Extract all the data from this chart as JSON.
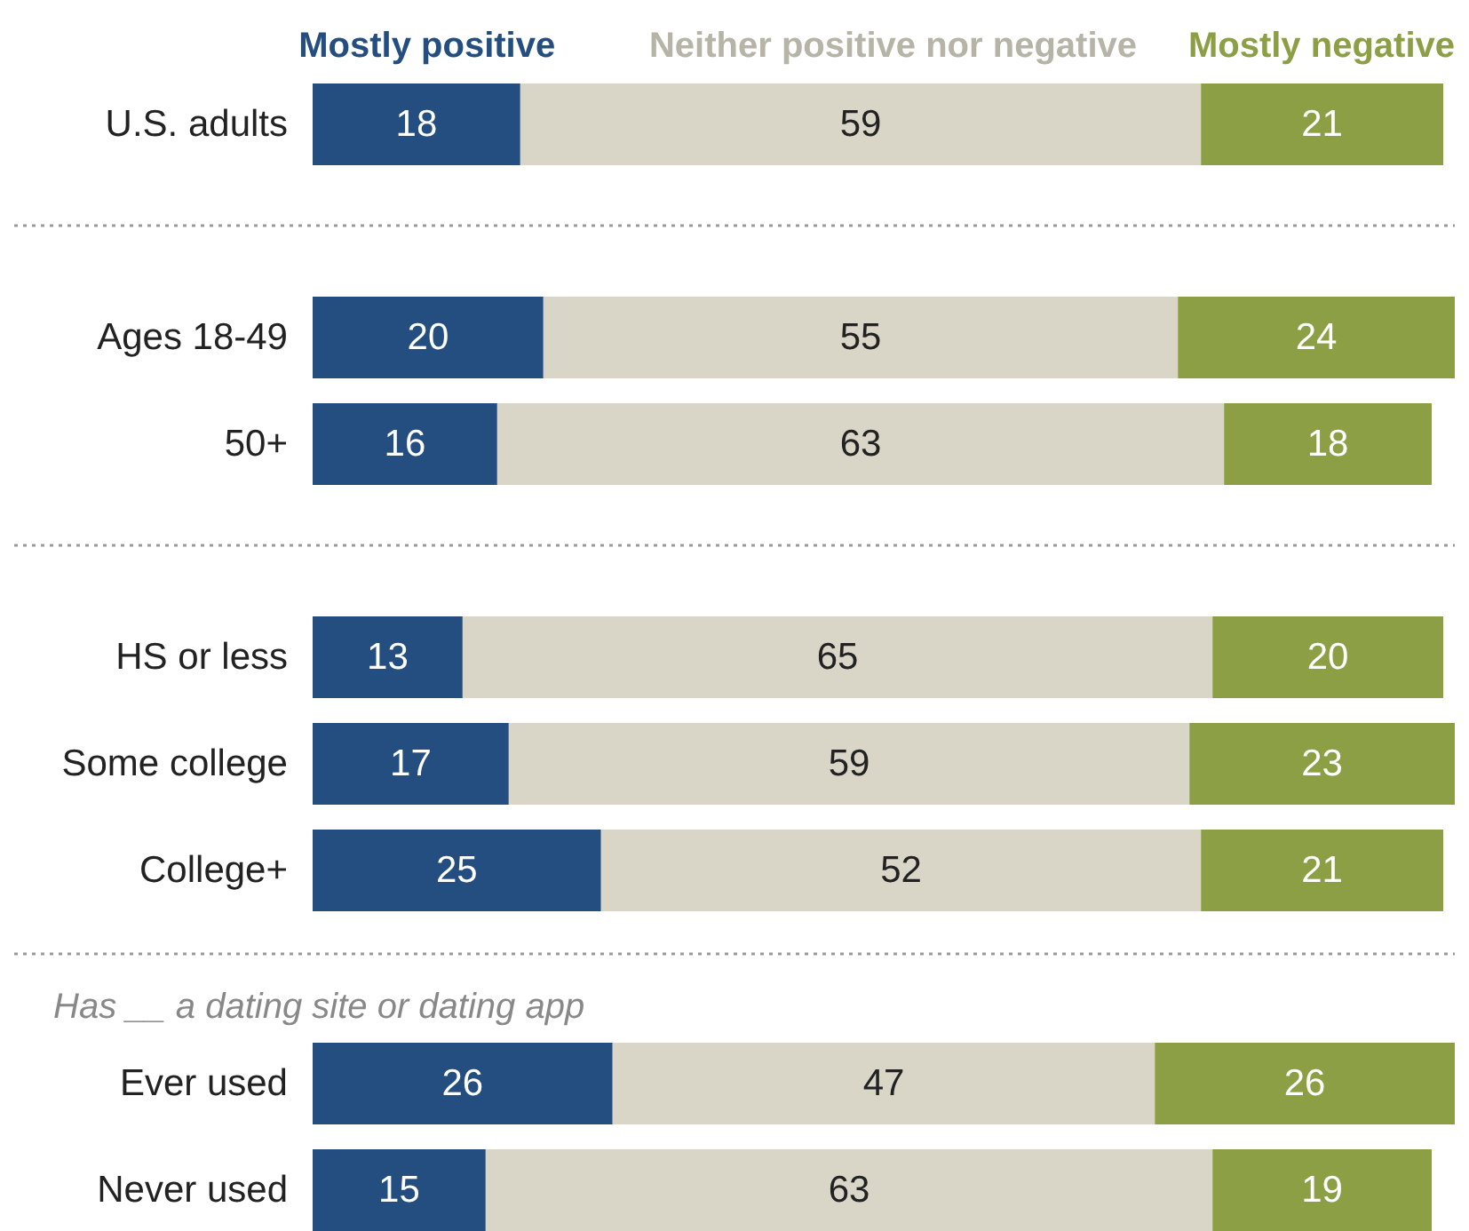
{
  "chart_data": {
    "type": "bar",
    "orientation": "horizontal",
    "stacked": true,
    "data_labels": true,
    "legend": "top",
    "categories": [
      "U.S. adults",
      null,
      "Ages 18-49",
      "50+",
      null,
      "HS or less",
      "Some college",
      "College+",
      null,
      "Ever used",
      "Never used"
    ],
    "series": [
      {
        "name": "Mostly positive",
        "color": "#234e7f",
        "values": [
          18,
          null,
          20,
          16,
          null,
          13,
          17,
          25,
          null,
          26,
          15
        ]
      },
      {
        "name": "Neither positive nor negative",
        "color": "#d9d6c8",
        "values": [
          59,
          null,
          55,
          63,
          null,
          65,
          59,
          52,
          null,
          47,
          63
        ]
      },
      {
        "name": "Mostly negative",
        "color": "#8c9f45",
        "values": [
          21,
          null,
          24,
          18,
          null,
          20,
          23,
          21,
          null,
          26,
          19
        ]
      }
    ],
    "annotations": [
      "Has __ a dating site or dating app"
    ]
  }
}
